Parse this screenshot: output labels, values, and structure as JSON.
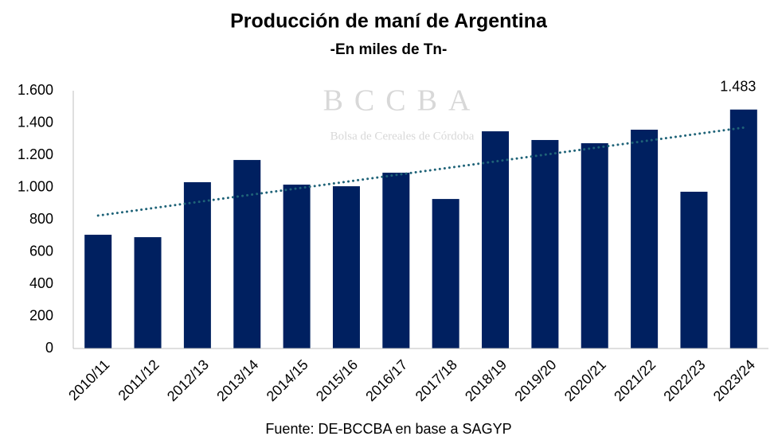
{
  "chart_data": {
    "type": "bar",
    "title": "Producción de maní de Argentina",
    "subtitle": "-En miles de Tn-",
    "watermark": {
      "title": "BCCBA",
      "subtitle": "Bolsa de Cereales de Córdoba"
    },
    "source": "Fuente: DE-BCCBA en base a SAGYP",
    "categories": [
      "2010/11",
      "2011/12",
      "2012/13",
      "2013/14",
      "2014/15",
      "2015/16",
      "2016/17",
      "2017/18",
      "2018/19",
      "2019/20",
      "2020/21",
      "2021/22",
      "2022/23",
      "2023/24"
    ],
    "values": [
      706,
      691,
      1032,
      1170,
      1017,
      1007,
      1091,
      928,
      1348,
      1294,
      1274,
      1358,
      973,
      1483
    ],
    "value_labels": [
      null,
      null,
      null,
      null,
      null,
      null,
      null,
      null,
      null,
      null,
      null,
      null,
      null,
      "1.483"
    ],
    "color": "#002060",
    "trendline": true,
    "trendline_color": "#1f6378",
    "ylim": [
      0,
      1600
    ],
    "yticks": [
      0,
      200,
      400,
      600,
      800,
      {
        "value": 1000,
        "label": "1.000"
      },
      {
        "value": 1200,
        "label": "1.200"
      },
      {
        "value": 1400,
        "label": "1.400"
      },
      {
        "value": 1600,
        "label": "1.600"
      }
    ],
    "grid": false
  }
}
